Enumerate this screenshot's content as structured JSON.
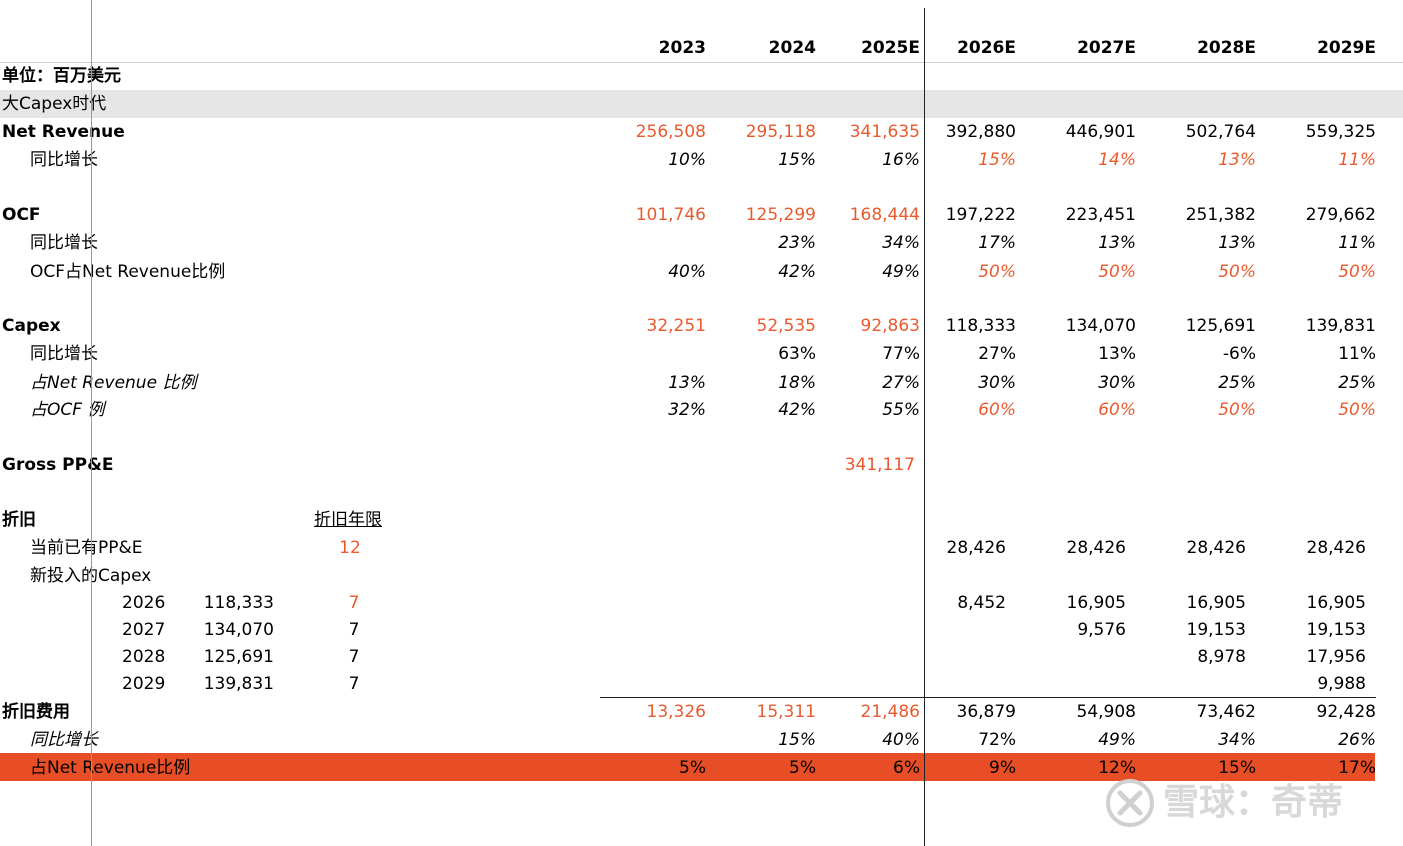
{
  "header": {
    "years": [
      "2023",
      "2024",
      "2025E",
      "2026E",
      "2027E",
      "2028E",
      "2029E"
    ],
    "unit_label": "单位：百万美元",
    "section_title": "大Capex时代"
  },
  "revenue": {
    "label": "Net Revenue",
    "values": [
      "256,508",
      "295,118",
      "341,635",
      "392,880",
      "446,901",
      "502,764",
      "559,325"
    ],
    "growth_label": "同比增长",
    "growth": [
      "10%",
      "15%",
      "16%",
      "15%",
      "14%",
      "13%",
      "11%"
    ]
  },
  "ocf": {
    "label": "OCF",
    "values": [
      "101,746",
      "125,299",
      "168,444",
      "197,222",
      "223,451",
      "251,382",
      "279,662"
    ],
    "growth_label": "同比增长",
    "growth": [
      "",
      "23%",
      "34%",
      "17%",
      "13%",
      "13%",
      "11%"
    ],
    "ratio_label": "OCF占Net Revenue比例",
    "ratio": [
      "40%",
      "42%",
      "49%",
      "50%",
      "50%",
      "50%",
      "50%"
    ]
  },
  "capex": {
    "label": "Capex",
    "values": [
      "32,251",
      "52,535",
      "92,863",
      "118,333",
      "134,070",
      "125,691",
      "139,831"
    ],
    "growth_label": "同比增长",
    "growth": [
      "",
      "63%",
      "77%",
      "27%",
      "13%",
      "-6%",
      "11%"
    ],
    "rev_ratio_label": "占Net Revenue 比例",
    "rev_ratio": [
      "13%",
      "18%",
      "27%",
      "30%",
      "30%",
      "25%",
      "25%"
    ],
    "ocf_ratio_label": "占OCF 例",
    "ocf_ratio": [
      "32%",
      "42%",
      "55%",
      "60%",
      "60%",
      "50%",
      "50%"
    ]
  },
  "ppe": {
    "label": "Gross PP&E",
    "value_2025": "341,117"
  },
  "depreciation": {
    "label": "折旧",
    "life_header": "折旧年限",
    "existing_label": "当前已有PP&E",
    "existing_life": "12",
    "existing_values": [
      "28,426",
      "28,426",
      "28,426",
      "28,426"
    ],
    "new_capex_label": "新投入的Capex",
    "vintages": [
      {
        "year": "2026",
        "amount": "118,333",
        "life": "7",
        "values": [
          "8,452",
          "16,905",
          "16,905",
          "16,905"
        ]
      },
      {
        "year": "2027",
        "amount": "134,070",
        "life": "7",
        "values": [
          "",
          "9,576",
          "19,153",
          "19,153"
        ]
      },
      {
        "year": "2028",
        "amount": "125,691",
        "life": "7",
        "values": [
          "",
          "",
          "8,978",
          "17,956"
        ]
      },
      {
        "year": "2029",
        "amount": "139,831",
        "life": "7",
        "values": [
          "",
          "",
          "",
          "9,988"
        ]
      }
    ],
    "expense_label": "折旧费用",
    "expense": [
      "13,326",
      "15,311",
      "21,486",
      "36,879",
      "54,908",
      "73,462",
      "92,428"
    ],
    "growth_label": "同比增长",
    "growth": [
      "",
      "15%",
      "40%",
      "72%",
      "49%",
      "34%",
      "26%"
    ],
    "rev_ratio_label": "占Net Revenue比例",
    "rev_ratio": [
      "5%",
      "5%",
      "6%",
      "9%",
      "12%",
      "15%",
      "17%"
    ]
  },
  "watermark": {
    "text": "雪球：奇蒂"
  },
  "colors": {
    "accent": "#e85a2e",
    "band": "#e6e6e6",
    "highlight": "#e84e26"
  }
}
